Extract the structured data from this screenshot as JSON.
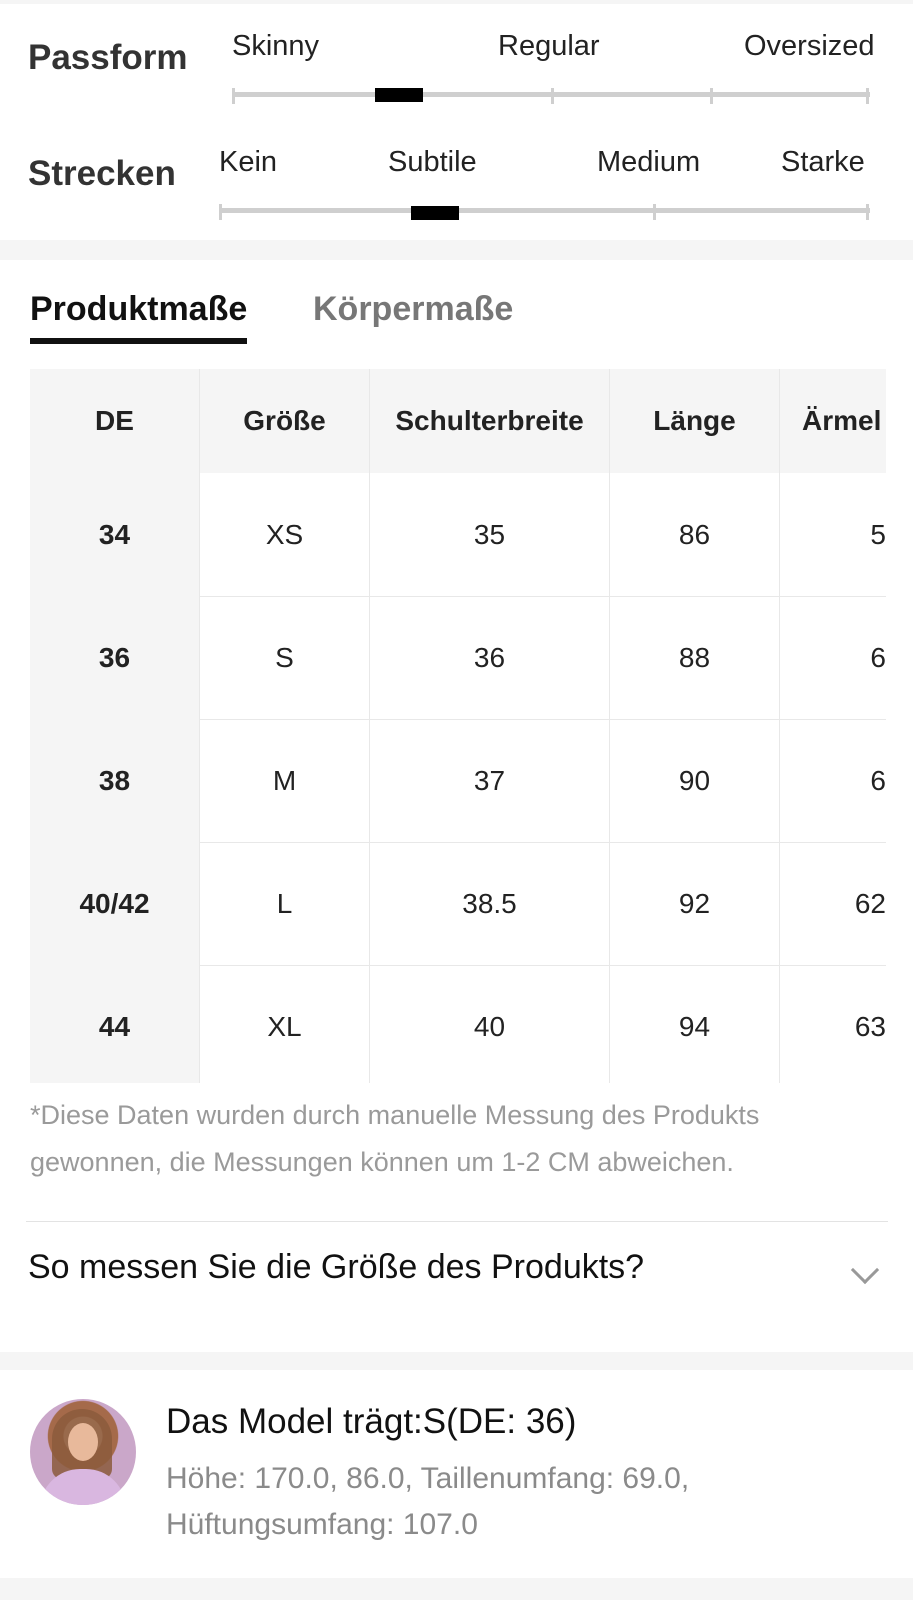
{
  "fit": {
    "passform": {
      "title": "Passform",
      "options": [
        "Skinny",
        "Regular",
        "Oversized"
      ],
      "selected_position": 0.25
    },
    "strecken": {
      "title": "Strecken",
      "options": [
        "Kein",
        "Subtile",
        "Medium",
        "Starke"
      ],
      "selected_position": 0.33
    }
  },
  "tabs": {
    "product": "Produktmaße",
    "body": "Körpermaße",
    "active": "product"
  },
  "table": {
    "headers": [
      "DE",
      "Größe",
      "Schulterbreite",
      "Länge",
      "Ärmel"
    ],
    "rows": [
      [
        "34",
        "XS",
        "35",
        "86",
        "5"
      ],
      [
        "36",
        "S",
        "36",
        "88",
        "6"
      ],
      [
        "38",
        "M",
        "37",
        "90",
        "6"
      ],
      [
        "40/42",
        "L",
        "38.5",
        "92",
        "62"
      ],
      [
        "44",
        "XL",
        "40",
        "94",
        "63"
      ]
    ]
  },
  "note": "*Diese Daten wurden durch manuelle Messung des Produkts gewonnen, die Messungen können um 1-2 CM abweichen.",
  "howto": "So messen Sie die Größe des Produkts?",
  "model": {
    "title": "Das Model trägt:S(DE: 36)",
    "info": "Höhe: 170.0,   86.0,  Taillenumfang: 69.0, Hüftungsumfang: 107.0"
  },
  "colors": {
    "marker": "#000000",
    "track": "#cfcfcf",
    "accent_text": "#111111",
    "muted_text": "#9a9a9a"
  }
}
